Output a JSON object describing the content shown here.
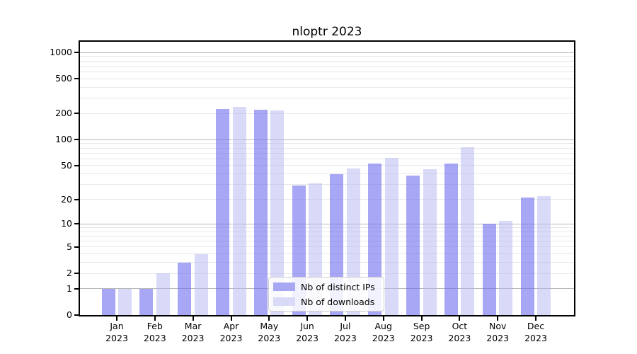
{
  "title": "nloptr 2023",
  "chart_data": {
    "type": "bar",
    "title": "nloptr 2023",
    "categories": [
      "Jan 2023",
      "Feb 2023",
      "Mar 2023",
      "Apr 2023",
      "May 2023",
      "Jun 2023",
      "Jul 2023",
      "Aug 2023",
      "Sep 2023",
      "Oct 2023",
      "Nov 2023",
      "Dec 2023"
    ],
    "series": [
      {
        "name": "Nb of distinct IPs",
        "values": [
          1,
          1,
          3,
          225,
          219,
          29,
          40,
          53,
          38,
          53,
          10,
          21
        ],
        "fill_rgba": "rgba(108,108,238,0.6)",
        "swatch_hex": "#a7a7f3"
      },
      {
        "name": "Nb of downloads",
        "values": [
          1,
          2,
          4,
          240,
          216,
          31,
          46,
          61,
          45,
          82,
          11,
          22
        ],
        "fill_rgba": "rgba(179,179,241,0.5)",
        "swatch_hex": "#d9d9f8"
      }
    ],
    "xlabel": "",
    "ylabel": "",
    "y_scale": "log1p",
    "ylim": [
      0,
      1300
    ],
    "y_ticks": [
      0,
      1,
      2,
      5,
      10,
      20,
      50,
      100,
      200,
      500,
      1000
    ],
    "y_major_gridlines": [
      1,
      10,
      100,
      1000
    ],
    "grid": "on",
    "legend_position": "lower center",
    "colors": {
      "major_gridline": "#b8b8b8",
      "minor_gridline": "#e8e8e8",
      "axis": "#000000",
      "background": "#ffffff"
    }
  }
}
